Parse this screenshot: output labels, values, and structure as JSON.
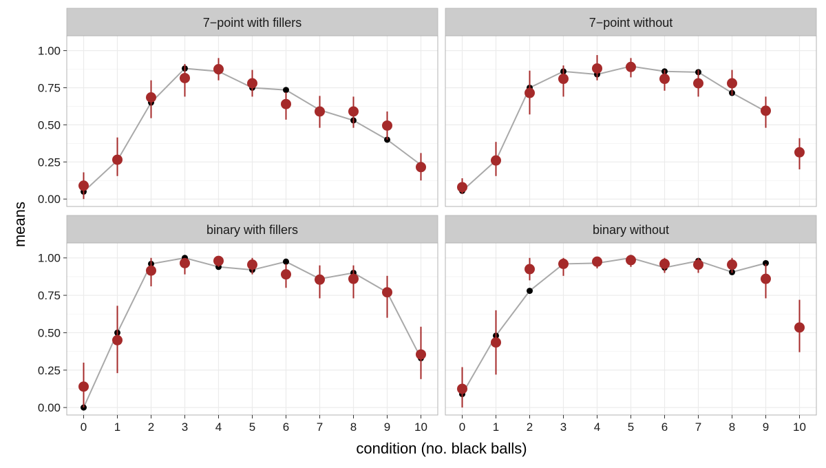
{
  "chart_data": {
    "type": "scatter",
    "xlabel": "condition (no. black balls)",
    "ylabel": "means",
    "x": [
      0,
      1,
      2,
      3,
      4,
      5,
      6,
      7,
      8,
      9,
      10
    ],
    "x_tick_labels": [
      "0",
      "1",
      "2",
      "3",
      "4",
      "5",
      "6",
      "7",
      "8",
      "9",
      "10"
    ],
    "ylim": [
      0,
      1.1
    ],
    "y_ticks": [
      0,
      0.25,
      0.5,
      0.75,
      1.0
    ],
    "y_tick_labels": [
      "0.00",
      "0.25",
      "0.50",
      "0.75",
      "1.00"
    ],
    "grid": true,
    "layout": "2x2 facets",
    "colors": {
      "observed": "#a52a2a",
      "model_line": "#a9a9a9",
      "model_point": "#000000",
      "strip": "#cccccc",
      "grid": "#ebebeb",
      "panel_border": "#b3b3b3"
    },
    "panels": [
      {
        "title": "7−point with fillers",
        "model": [
          0.05,
          0.26,
          0.65,
          0.88,
          0.86,
          0.75,
          0.735,
          0.6,
          0.53,
          0.4,
          0.23
        ],
        "observed": [
          0.09,
          0.265,
          0.685,
          0.815,
          0.875,
          0.78,
          0.64,
          0.59,
          0.59,
          0.495,
          0.215
        ],
        "ci_low": [
          0.0,
          0.155,
          0.545,
          0.69,
          0.8,
          0.69,
          0.535,
          0.48,
          0.48,
          0.4,
          0.125
        ],
        "ci_high": [
          0.18,
          0.415,
          0.8,
          0.91,
          0.95,
          0.87,
          0.72,
          0.695,
          0.69,
          0.59,
          0.31
        ]
      },
      {
        "title": "7−point without",
        "model": [
          0.055,
          0.26,
          0.75,
          0.86,
          0.84,
          0.895,
          0.86,
          0.855,
          0.715,
          0.59,
          null
        ],
        "observed": [
          0.08,
          0.26,
          0.715,
          0.81,
          0.88,
          0.89,
          0.81,
          0.78,
          0.78,
          0.595,
          0.315
        ],
        "ci_low": [
          0.035,
          0.155,
          0.57,
          0.69,
          0.8,
          0.82,
          0.73,
          0.69,
          0.7,
          0.48,
          0.2
        ],
        "ci_high": [
          0.14,
          0.385,
          0.865,
          0.9,
          0.97,
          0.95,
          0.87,
          0.87,
          0.87,
          0.69,
          0.41
        ]
      },
      {
        "title": "binary with fillers",
        "model": [
          0.0,
          0.5,
          0.96,
          1.0,
          0.94,
          0.92,
          0.975,
          0.86,
          0.9,
          0.77,
          0.33
        ],
        "observed": [
          0.14,
          0.45,
          0.915,
          0.965,
          0.98,
          0.955,
          0.89,
          0.855,
          0.86,
          0.77,
          0.355
        ],
        "ci_low": [
          0.0,
          0.23,
          0.81,
          0.89,
          0.94,
          0.89,
          0.8,
          0.73,
          0.73,
          0.6,
          0.19
        ],
        "ci_high": [
          0.3,
          0.68,
          1.0,
          1.0,
          1.0,
          1.0,
          0.96,
          0.95,
          0.95,
          0.88,
          0.54
        ]
      },
      {
        "title": "binary without",
        "model": [
          0.09,
          0.48,
          0.78,
          0.96,
          0.965,
          1.0,
          0.935,
          0.98,
          0.905,
          0.965,
          null
        ],
        "observed": [
          0.125,
          0.435,
          0.925,
          0.96,
          0.975,
          0.985,
          0.96,
          0.955,
          0.955,
          0.86,
          0.535
        ],
        "ci_low": [
          0.0,
          0.22,
          0.85,
          0.88,
          0.93,
          0.94,
          0.9,
          0.9,
          0.9,
          0.73,
          0.37
        ],
        "ci_high": [
          0.27,
          0.65,
          1.0,
          1.0,
          1.0,
          1.0,
          1.0,
          1.0,
          1.0,
          0.96,
          0.72
        ]
      }
    ]
  }
}
